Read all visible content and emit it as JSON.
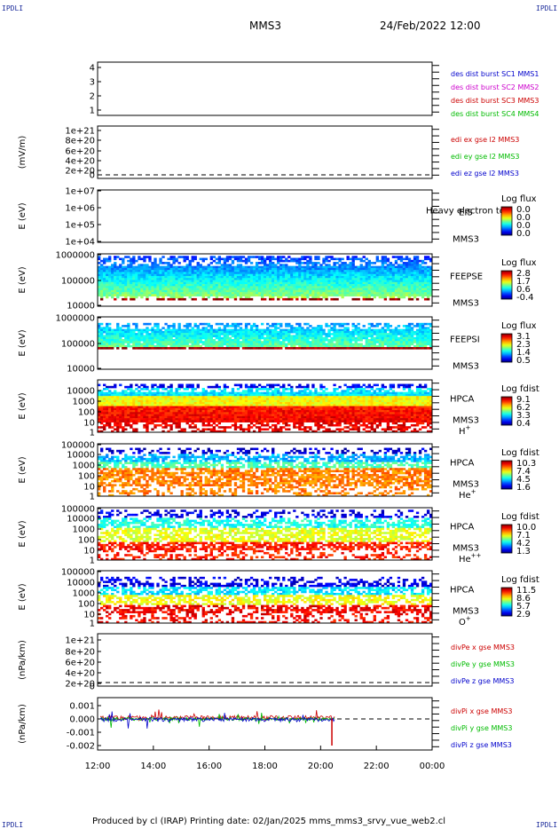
{
  "corner_label": "IPDLI",
  "header": {
    "mission": "MMS3",
    "datetime": "24/Feb/2022 12:00"
  },
  "footer": {
    "text": "Produced by cl (IRAP)   Printing date: 02/Jan/2025   mms_mms3_srvy_vue_web2.cl"
  },
  "chart_data": [
    {
      "type": "line",
      "id": "panel1",
      "ylabel": "",
      "yticks": [
        "4",
        "3",
        "2",
        "1"
      ],
      "legend": [
        {
          "label": "des dist burst SC1 MMS1",
          "color": "#0000cc"
        },
        {
          "label": "des dist burst SC2 MMS2",
          "color": "#cc00cc"
        },
        {
          "label": "des dist burst SC3 MMS3",
          "color": "#cc0000"
        },
        {
          "label": "des dist burst SC4 MMS4",
          "color": "#00bb00"
        }
      ],
      "series": []
    },
    {
      "type": "line",
      "id": "panel2",
      "ylabel": "(mV/m)",
      "yticks": [
        "1e+21",
        "8e+20",
        "6e+20",
        "4e+20",
        "2e+20",
        "0"
      ],
      "legend": [
        {
          "label": "edi ex gse l2 MMS3",
          "color": "#cc0000"
        },
        {
          "label": "edi ey gse l2 MMS3",
          "color": "#00bb00"
        },
        {
          "label": "edi ez gse l2 MMS3",
          "color": "#0000cc"
        }
      ],
      "series": []
    },
    {
      "type": "heatmap",
      "id": "panel3",
      "ylabel": "E (eV)",
      "yticks": [
        "1e+07",
        "1e+06",
        "1e+05",
        "1e+04"
      ],
      "instrument": "EIS",
      "sc": "MMS3",
      "species": "",
      "overlay_text": "Heavy electron to",
      "colorbar": {
        "title": "Log flux",
        "ticks": [
          "0.0",
          "0.0",
          "0.0",
          "0.0"
        ]
      },
      "values": null
    },
    {
      "type": "heatmap",
      "id": "panel4",
      "ylabel": "E (eV)",
      "yticks": [
        "1000000",
        "100000",
        "10000"
      ],
      "instrument": "FEEPSE",
      "sc": "MMS3",
      "species": "",
      "colorbar": {
        "title": "Log flux",
        "ticks": [
          "2.8",
          "1.7",
          "0.6",
          "-0.4"
        ]
      }
    },
    {
      "type": "heatmap",
      "id": "panel5",
      "ylabel": "E (eV)",
      "yticks": [
        "1000000",
        "100000",
        "10000"
      ],
      "instrument": "FEEPSI",
      "sc": "MMS3",
      "species": "",
      "colorbar": {
        "title": "Log flux",
        "ticks": [
          "3.1",
          "2.3",
          "1.4",
          "0.5"
        ]
      }
    },
    {
      "type": "heatmap",
      "id": "panel6",
      "ylabel": "E (eV)",
      "yticks": [
        "10000",
        "1000",
        "100",
        "10",
        "1"
      ],
      "instrument": "HPCA",
      "sc": "MMS3",
      "species": "H",
      "species_sup": "+",
      "colorbar": {
        "title": "Log fdist",
        "ticks": [
          "9.1",
          "6.2",
          "3.3",
          "0.4"
        ]
      }
    },
    {
      "type": "heatmap",
      "id": "panel7",
      "ylabel": "E (eV)",
      "yticks": [
        "100000",
        "10000",
        "1000",
        "100",
        "10",
        "1"
      ],
      "instrument": "HPCA",
      "sc": "MMS3",
      "species": "He",
      "species_sup": "+",
      "colorbar": {
        "title": "Log fdist",
        "ticks": [
          "10.3",
          "7.4",
          "4.5",
          "1.6"
        ]
      }
    },
    {
      "type": "heatmap",
      "id": "panel8",
      "ylabel": "E (eV)",
      "yticks": [
        "100000",
        "10000",
        "1000",
        "100",
        "10",
        "1"
      ],
      "instrument": "HPCA",
      "sc": "MMS3",
      "species": "He",
      "species_sup": "++",
      "colorbar": {
        "title": "Log fdist",
        "ticks": [
          "10.0",
          "7.1",
          "4.2",
          "1.3"
        ]
      }
    },
    {
      "type": "heatmap",
      "id": "panel9",
      "ylabel": "E (eV)",
      "yticks": [
        "100000",
        "10000",
        "1000",
        "100",
        "10",
        "1"
      ],
      "instrument": "HPCA",
      "sc": "MMS3",
      "species": "O",
      "species_sup": "+",
      "colorbar": {
        "title": "Log fdist",
        "ticks": [
          "11.5",
          "8.6",
          "5.7",
          "2.9"
        ]
      }
    },
    {
      "type": "line",
      "id": "panel10",
      "ylabel": "(nPa/km)",
      "yticks": [
        "1e+21",
        "8e+20",
        "6e+20",
        "4e+20",
        "2e+20",
        "0"
      ],
      "legend": [
        {
          "label": "divPe x gse MMS3",
          "color": "#cc0000"
        },
        {
          "label": "divPe y gse MMS3",
          "color": "#00bb00"
        },
        {
          "label": "divPe z gse MMS3",
          "color": "#0000cc"
        }
      ],
      "series": []
    },
    {
      "type": "line",
      "id": "panel11",
      "ylabel": "(nPa/km)",
      "yticks": [
        "0.001",
        "0.000",
        "-0.001",
        "-0.002"
      ],
      "ylim": [
        -0.0025,
        0.0015
      ],
      "x_end": "20:30",
      "legend": [
        {
          "label": "divPi x gse MMS3",
          "color": "#cc0000"
        },
        {
          "label": "divPi y gse MMS3",
          "color": "#00bb00"
        },
        {
          "label": "divPi z gse MMS3",
          "color": "#0000cc"
        }
      ],
      "series": [
        {
          "name": "divPi x gse MMS3",
          "mean": 0.0001,
          "spread": 0.00015
        },
        {
          "name": "divPi y gse MMS3",
          "mean": 0.0,
          "spread": 0.00012
        },
        {
          "name": "divPi z gse MMS3",
          "mean": -5e-05,
          "spread": 0.00015
        }
      ]
    }
  ],
  "xaxis": {
    "ticks": [
      "12:00",
      "14:00",
      "16:00",
      "18:00",
      "20:00",
      "22:00",
      "00:00"
    ]
  }
}
